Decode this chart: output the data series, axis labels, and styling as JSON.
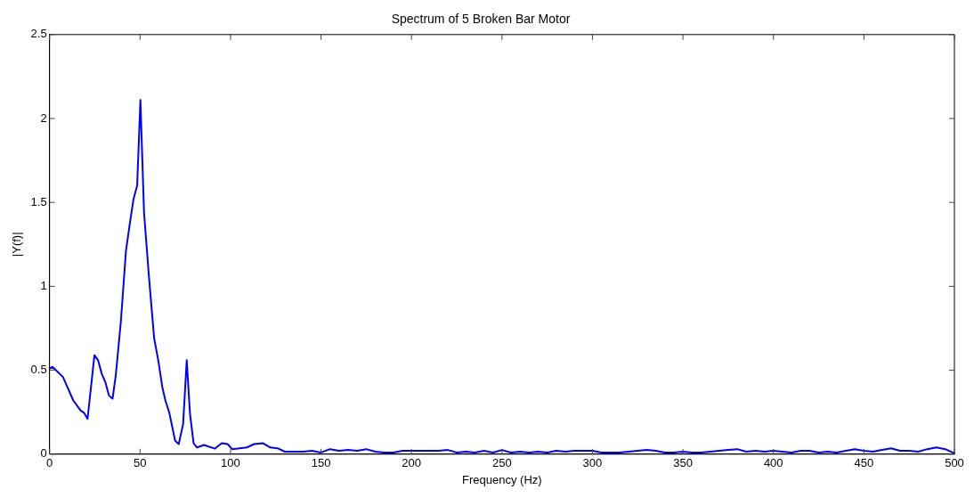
{
  "chart_data": {
    "type": "line",
    "title": "Spectrum of 5 Broken Bar Motor",
    "xlabel": "Frequency (Hz)",
    "ylabel": "|Y(f)|",
    "xlim": [
      0,
      500
    ],
    "xticks": [
      0,
      50,
      100,
      150,
      200,
      250,
      300,
      350,
      400,
      450,
      500
    ],
    "ylim": [
      0,
      2.5
    ],
    "yticks": [
      0,
      0.5,
      1,
      1.5,
      2,
      2.5
    ],
    "grid": false,
    "legend": false,
    "marker": "none",
    "line_style": "solid",
    "series": [
      {
        "color": "#0000ff",
        "x": [
          0,
          1.6,
          7.4,
          13.1,
          17.2,
          19.2,
          21,
          24.8,
          26.8,
          28.8,
          30.8,
          32.8,
          34.8,
          36.6,
          39.4,
          42.2,
          44.3,
          46.4,
          48.4,
          50.2,
          52.2,
          54.9,
          57.8,
          60.2,
          62.3,
          64,
          66.1,
          69.4,
          71.4,
          73.8,
          75.8,
          77.6,
          79.6,
          81.5,
          85.3,
          91.4,
          95.1,
          98.4,
          100.9,
          105,
          109,
          113,
          118,
          122,
          126,
          130,
          135,
          140,
          145,
          150,
          155,
          160,
          165,
          170,
          175,
          180,
          185,
          190,
          195,
          200,
          205,
          210,
          215,
          220,
          225,
          230,
          235,
          240,
          245,
          250,
          255,
          260,
          265,
          270,
          275,
          280,
          285,
          290,
          295,
          300,
          305,
          310,
          315,
          320,
          325,
          330,
          335,
          340,
          345,
          350,
          355,
          360,
          365,
          370,
          375,
          380,
          385,
          390,
          395,
          400,
          405,
          410,
          415,
          420,
          425,
          430,
          435,
          440,
          445,
          450,
          455,
          460,
          465,
          470,
          475,
          480,
          485,
          490,
          495,
          500
        ],
        "values": [
          0.51,
          0.52,
          0.46,
          0.32,
          0.26,
          0.245,
          0.21,
          0.59,
          0.56,
          0.48,
          0.43,
          0.35,
          0.33,
          0.47,
          0.79,
          1.21,
          1.37,
          1.52,
          1.6,
          2.11,
          1.44,
          1.06,
          0.69,
          0.55,
          0.4,
          0.32,
          0.25,
          0.08,
          0.06,
          0.18,
          0.56,
          0.24,
          0.065,
          0.04,
          0.055,
          0.033,
          0.065,
          0.06,
          0.03,
          0.035,
          0.04,
          0.06,
          0.065,
          0.04,
          0.035,
          0.015,
          0.015,
          0.015,
          0.02,
          0.01,
          0.03,
          0.02,
          0.025,
          0.02,
          0.03,
          0.015,
          0.01,
          0.01,
          0.02,
          0.02,
          0.02,
          0.02,
          0.02,
          0.025,
          0.01,
          0.015,
          0.01,
          0.02,
          0.01,
          0.025,
          0.01,
          0.015,
          0.01,
          0.015,
          0.01,
          0.02,
          0.015,
          0.02,
          0.02,
          0.02,
          0.01,
          0.01,
          0.01,
          0.015,
          0.02,
          0.025,
          0.02,
          0.01,
          0.01,
          0.015,
          0.01,
          0.01,
          0.015,
          0.02,
          0.025,
          0.03,
          0.015,
          0.02,
          0.015,
          0.02,
          0.015,
          0.01,
          0.02,
          0.02,
          0.01,
          0.015,
          0.01,
          0.02,
          0.03,
          0.02,
          0.015,
          0.025,
          0.035,
          0.02,
          0.02,
          0.015,
          0.03,
          0.04,
          0.03,
          0.005
        ]
      }
    ]
  }
}
